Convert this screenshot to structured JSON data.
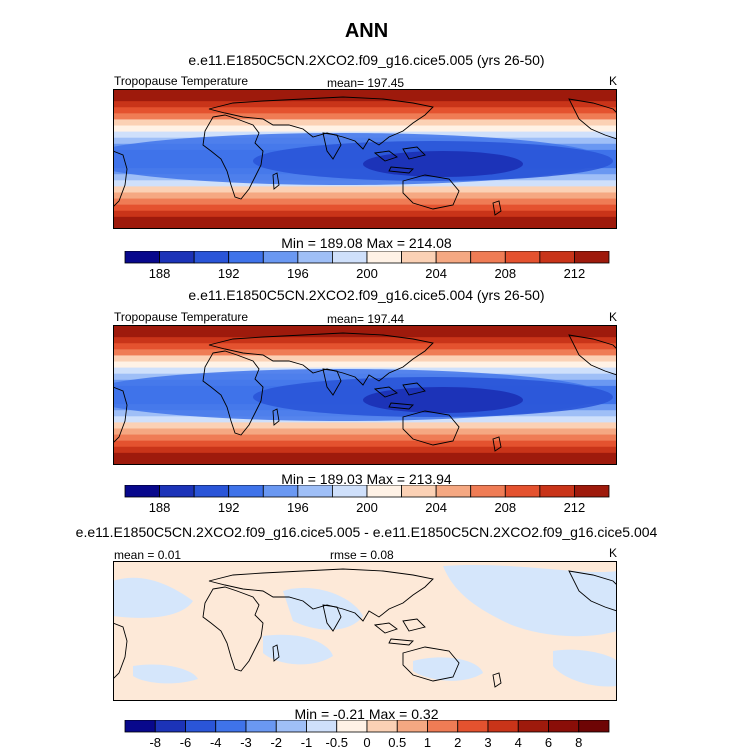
{
  "figure_title": "ANN",
  "units": "K",
  "chart_data": [
    {
      "type": "heatmap",
      "title": "e.e11.E1850C5CN.2XCO2.f09_g16.cice5.005 (yrs 26-50)",
      "variable_label": "Tropopause Temperature",
      "mean_label": "mean= 197.45",
      "units": "K",
      "min_max_label": "Min = 189.08 Max = 214.08",
      "min": 189.08,
      "max": 214.08,
      "colorbar_ticks": [
        "188",
        "192",
        "196",
        "200",
        "204",
        "208",
        "212"
      ],
      "band_values": [
        213.5,
        212,
        210,
        208,
        206,
        203.5,
        201,
        199,
        197,
        195,
        193.5,
        192.5,
        193,
        194.5,
        197,
        199.5,
        202,
        205,
        207.5,
        209.5,
        211,
        212.5,
        213.5
      ],
      "warm_pool_min": 189.08
    },
    {
      "type": "heatmap",
      "title": "e.e11.E1850C5CN.2XCO2.f09_g16.cice5.004 (yrs 26-50)",
      "variable_label": "Tropopause Temperature",
      "mean_label": "mean= 197.44",
      "units": "K",
      "min_max_label": "Min = 189.03 Max = 213.94",
      "min": 189.03,
      "max": 213.94,
      "colorbar_ticks": [
        "188",
        "192",
        "196",
        "200",
        "204",
        "208",
        "212"
      ],
      "band_values": [
        213.4,
        212,
        210,
        208,
        206,
        203.5,
        201,
        199,
        197,
        195,
        193.5,
        192.5,
        193,
        194.5,
        197,
        199.5,
        202,
        205,
        207.5,
        209.5,
        211,
        212.5,
        213.4
      ],
      "warm_pool_min": 189.03
    },
    {
      "type": "heatmap",
      "title": "e.e11.E1850C5CN.2XCO2.f09_g16.cice5.005 - e.e11.E1850C5CN.2XCO2.f09_g16.cice5.004",
      "mean_label": "mean =   0.01",
      "rmse_label": "rmse =   0.08",
      "units": "K",
      "min_max_label": "Min =  -0.21 Max =    0.32",
      "min": -0.21,
      "max": 0.32,
      "colorbar_ticks": [
        "-8",
        "-6",
        "-4",
        "-3",
        "-2",
        "-1",
        "-0.5",
        "0",
        "0.5",
        "1",
        "2",
        "3",
        "4",
        "6",
        "8"
      ]
    }
  ],
  "colors": {
    "abs_palette": [
      "#08088c",
      "#1c33b8",
      "#2a55d8",
      "#3f73ea",
      "#6a98f2",
      "#9fbff7",
      "#cfe0fb",
      "#fff2e6",
      "#fbd1b5",
      "#f5a882",
      "#ef7c55",
      "#e4522f",
      "#c93419",
      "#9e1a0c"
    ],
    "diff_palette": [
      "#08088c",
      "#1c33b8",
      "#2a55d8",
      "#3f73ea",
      "#6a98f2",
      "#9fbff7",
      "#cfe0fb",
      "#fff2e6",
      "#fbd1b5",
      "#f5a882",
      "#ef7c55",
      "#e4522f",
      "#c93419",
      "#9e1a0c",
      "#8a0e08",
      "#6e0505"
    ],
    "diff_positive": "#fde9d8",
    "diff_negative": "#d5e6fb"
  }
}
